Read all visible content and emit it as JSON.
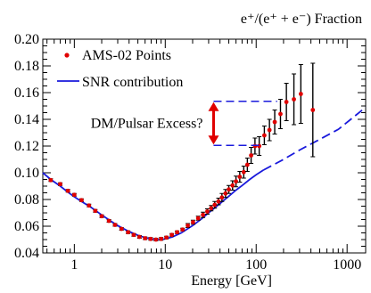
{
  "chart_data": {
    "type": "scatter",
    "title": "e⁺/(e⁺ + e⁻)  Fraction",
    "xlabel": "Energy [GeV]",
    "ylabel": "",
    "xscale": "log",
    "xlim": [
      0.45,
      1600
    ],
    "ylim": [
      0.04,
      0.2
    ],
    "xticks": [
      1,
      10,
      100,
      1000
    ],
    "xtick_labels": [
      "1",
      "10",
      "100",
      "1000"
    ],
    "yticks": [
      0.04,
      0.06,
      0.08,
      0.1,
      0.12,
      0.14,
      0.16,
      0.18,
      0.2
    ],
    "ytick_labels": [
      "0.04",
      "0.06",
      "0.08",
      "0.10",
      "0.12",
      "0.14",
      "0.16",
      "0.18",
      "0.20"
    ],
    "grid": false,
    "legend_position": "top-left",
    "colors": {
      "points": "#e00000",
      "line": "#1a1adc",
      "arrow": "#e00000",
      "errorbar": "#000000"
    },
    "series": [
      {
        "name": "AMS-02  Points",
        "kind": "points",
        "x": [
          0.55,
          0.7,
          0.85,
          1.0,
          1.2,
          1.45,
          1.7,
          2.0,
          2.4,
          2.8,
          3.3,
          3.9,
          4.5,
          5.2,
          6.0,
          6.9,
          7.9,
          9.0,
          10.3,
          11.8,
          13.5,
          15.5,
          17.7,
          20.2,
          23.0,
          26.0,
          29.0,
          32.0,
          35.0,
          38.5,
          42.0,
          46.0,
          50.0,
          55.0,
          60.0,
          66.0,
          73.0,
          80.0,
          88.0,
          97.0,
          108.0,
          123.0,
          140.0,
          160.0,
          185.0,
          215.0,
          260.0,
          310.0,
          420.0
        ],
        "y": [
          0.0945,
          0.0915,
          0.0865,
          0.0835,
          0.0795,
          0.0755,
          0.0715,
          0.0675,
          0.064,
          0.061,
          0.058,
          0.0555,
          0.0535,
          0.052,
          0.051,
          0.0505,
          0.05,
          0.0505,
          0.0515,
          0.0535,
          0.0555,
          0.0575,
          0.0605,
          0.063,
          0.066,
          0.0685,
          0.071,
          0.0735,
          0.076,
          0.0785,
          0.0815,
          0.0845,
          0.0875,
          0.0905,
          0.0935,
          0.097,
          0.1005,
          0.106,
          0.113,
          0.12,
          0.12,
          0.128,
          0.132,
          0.138,
          0.144,
          0.153,
          0.155,
          0.159,
          0.147
        ],
        "yerr": [
          0.001,
          0.001,
          0.001,
          0.001,
          0.001,
          0.001,
          0.001,
          0.001,
          0.001,
          0.001,
          0.001,
          0.001,
          0.001,
          0.001,
          0.001,
          0.001,
          0.001,
          0.001,
          0.001,
          0.001,
          0.001,
          0.001,
          0.0015,
          0.0015,
          0.0015,
          0.002,
          0.002,
          0.002,
          0.0025,
          0.0025,
          0.003,
          0.003,
          0.003,
          0.0035,
          0.004,
          0.004,
          0.0045,
          0.005,
          0.006,
          0.006,
          0.007,
          0.007,
          0.008,
          0.009,
          0.011,
          0.014,
          0.019,
          0.022,
          0.035
        ]
      },
      {
        "name": "SNR contribution",
        "kind": "line",
        "x": [
          0.45,
          0.55,
          0.7,
          0.85,
          1.0,
          1.2,
          1.5,
          2.0,
          2.5,
          3.0,
          4.0,
          5.0,
          6.0,
          7.0,
          8.0,
          9.0,
          10.0,
          12.0,
          15.0,
          20.0,
          25.0,
          30.0,
          40.0,
          50.0,
          60.0,
          70.0,
          85.0,
          100.0,
          120.0,
          150.0,
          200.0,
          300.0,
          500.0,
          800.0,
          1600.0
        ],
        "y": [
          0.1,
          0.095,
          0.09,
          0.0855,
          0.082,
          0.0785,
          0.0745,
          0.0685,
          0.064,
          0.0605,
          0.056,
          0.0532,
          0.0515,
          0.0505,
          0.05,
          0.05,
          0.0505,
          0.052,
          0.055,
          0.0605,
          0.0655,
          0.07,
          0.077,
          0.0825,
          0.087,
          0.0905,
          0.095,
          0.0985,
          0.102,
          0.1055,
          0.11,
          0.117,
          0.125,
          0.1325,
          0.149
        ]
      }
    ],
    "annotation": {
      "text": "DM/Pulsar Excess?",
      "arrow": {
        "x": 34,
        "y_from": 0.1205,
        "y_to": 0.1535
      },
      "dashed_upper": {
        "x_from": 34,
        "x_to": 170,
        "y": 0.1535
      },
      "dashed_lower": {
        "x_from": 34,
        "x_to": 110,
        "y": 0.1205
      }
    }
  }
}
